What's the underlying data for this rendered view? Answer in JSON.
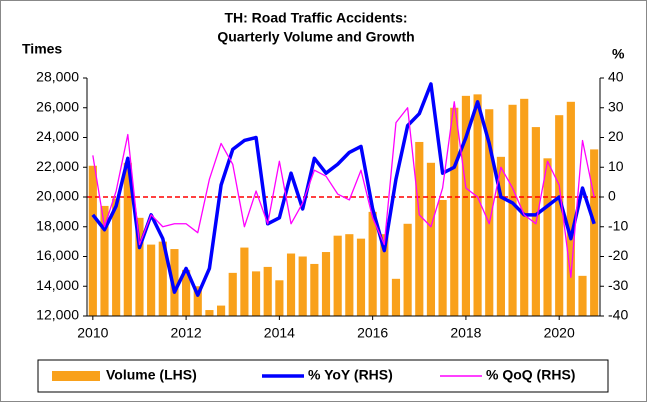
{
  "chart_data": {
    "type": "bar_line",
    "title": [
      "TH: Road Traffic Accidents:",
      "Quarterly Volume and Growth"
    ],
    "y_label": "Times",
    "y2_label": "%",
    "x": [
      2010,
      2010.25,
      2010.5,
      2010.75,
      2011,
      2011.25,
      2011.5,
      2011.75,
      2012,
      2012.25,
      2012.5,
      2012.75,
      2013,
      2013.25,
      2013.5,
      2013.75,
      2014,
      2014.25,
      2014.5,
      2014.75,
      2015,
      2015.25,
      2015.5,
      2015.75,
      2016,
      2016.25,
      2016.5,
      2016.75,
      2017,
      2017.25,
      2017.5,
      2017.75,
      2018,
      2018.25,
      2018.5,
      2018.75,
      2019,
      2019.25,
      2019.5,
      2019.75,
      2020,
      2020.25,
      2020.5,
      2020.75
    ],
    "series": [
      {
        "name": "Volume (LHS)",
        "type": "bar",
        "axis": "y",
        "color": "#f9a11b",
        "values": [
          22100,
          19400,
          19900,
          22300,
          18600,
          16800,
          17000,
          16500,
          15100,
          14000,
          12400,
          12700,
          14900,
          16600,
          15000,
          15300,
          14400,
          16200,
          16000,
          15500,
          16300,
          17400,
          17500,
          17200,
          19000,
          17500,
          14500,
          18200,
          23700,
          22300,
          19800,
          26000,
          26800,
          26900,
          25900,
          22700,
          26200,
          26600,
          24700,
          22600,
          25500,
          26400,
          14700,
          23200
        ]
      },
      {
        "name": "% YoY (RHS)",
        "type": "line",
        "axis": "y2",
        "color": "#0000ff",
        "values": [
          -6,
          -11,
          -3,
          13,
          -17,
          -6,
          -14,
          -32,
          -24,
          -33,
          -24,
          4,
          16,
          19,
          20,
          -9,
          -7,
          8,
          -4,
          13,
          8,
          11,
          15,
          17,
          -4,
          -18,
          6,
          24,
          28,
          38,
          8,
          10,
          20,
          32,
          18,
          0,
          -2,
          -6,
          -6,
          -3,
          0,
          -14,
          3,
          -9
        ]
      },
      {
        "name": "% QoQ (RHS)",
        "type": "line",
        "axis": "y2",
        "color": "#ff00ff",
        "values": [
          14,
          -10,
          2,
          21,
          -16,
          -6,
          -10,
          -9,
          -9,
          -12,
          6,
          18,
          11,
          -10,
          2,
          -9,
          12,
          -9,
          -2,
          9,
          7,
          1,
          -1,
          9,
          -7,
          -16,
          25,
          30,
          -6,
          -10,
          3,
          32,
          3,
          0,
          -9,
          10,
          3,
          -6,
          -9,
          12,
          4,
          -27,
          19,
          0
        ]
      }
    ],
    "xlim": [
      2009.875,
      2020.875
    ],
    "xticks": [
      2010,
      2012,
      2014,
      2016,
      2018,
      2020
    ],
    "ylim": [
      12000,
      28000
    ],
    "yticks": [
      {
        "value": 12000,
        "label": "12,000"
      },
      {
        "value": 14000,
        "label": "14,000"
      },
      {
        "value": 16000,
        "label": "16,000"
      },
      {
        "value": 18000,
        "label": "18,000"
      },
      {
        "value": 20000,
        "label": "20,000"
      },
      {
        "value": 22000,
        "label": "22,000"
      },
      {
        "value": 24000,
        "label": "24,000"
      },
      {
        "value": 26000,
        "label": "26,000"
      },
      {
        "value": 28000,
        "label": "28,000"
      }
    ],
    "y2lim": [
      -40,
      40
    ],
    "y2ticks": [
      -40,
      -30,
      -20,
      -10,
      0,
      10,
      20,
      30,
      40
    ],
    "reference_line": {
      "axis": "y2",
      "value": 0,
      "color": "#ff0000"
    },
    "legend": "bottom"
  }
}
